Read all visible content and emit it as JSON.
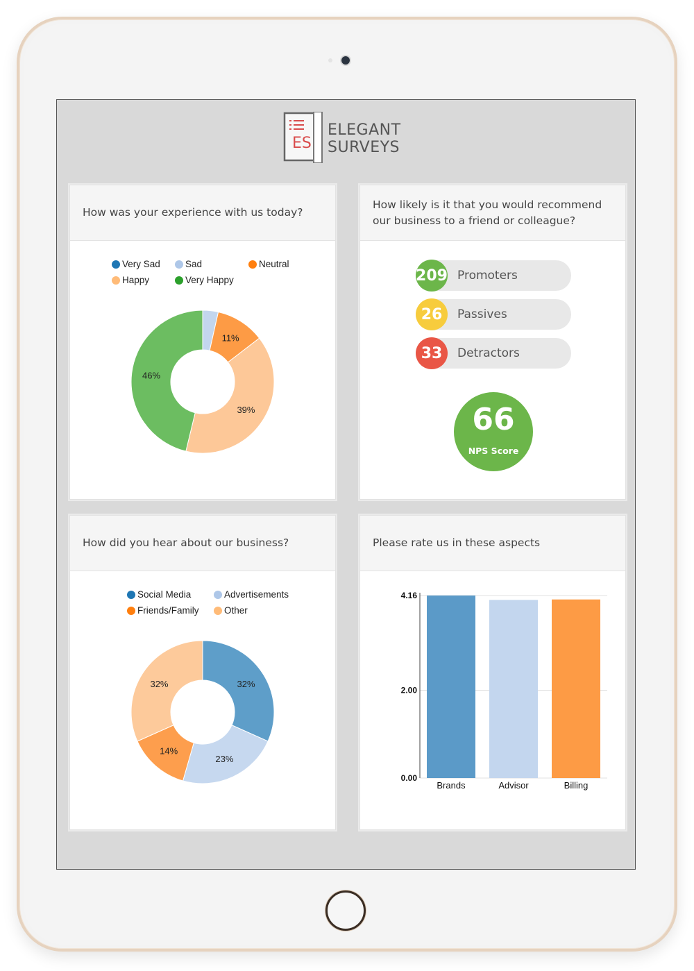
{
  "brand": {
    "logo_letters": "ES",
    "name_line1": "ELEGANT",
    "name_line2": "SURVEYS"
  },
  "colors": {
    "blue": "#4a90c4",
    "light_blue": "#c3d6ee",
    "orange": "#fd9b45",
    "peach": "#fdc898",
    "green": "#6cbd61",
    "yellow": "#f7cc3d",
    "red": "#e95646",
    "nps_green": "#6cb64a"
  },
  "cards": {
    "experience": {
      "question": "How was your experience with us today?"
    },
    "recommend": {
      "question": "How likely is it that you would recommend our business to a friend or colleague?"
    },
    "hear": {
      "question": "How did you hear about our business?"
    },
    "rate": {
      "question": "Please rate us in these aspects"
    }
  },
  "nps": {
    "groups": [
      {
        "count": "209",
        "label": "Promoters",
        "color": "#6cb64a"
      },
      {
        "count": "26",
        "label": "Passives",
        "color": "#f7cc3d"
      },
      {
        "count": "33",
        "label": "Detractors",
        "color": "#e95646"
      }
    ],
    "score": "66",
    "score_label": "NPS Score"
  },
  "chart_data": [
    {
      "type": "pie",
      "donut": true,
      "legend": [
        "Very Sad",
        "Sad",
        "Neutral",
        "Happy",
        "Very Happy"
      ],
      "legend_colors": [
        "#1f77b4",
        "#aec7e8",
        "#ff7f0e",
        "#ffbb78",
        "#2ca02c"
      ],
      "slices": [
        {
          "label": "Very Sad",
          "value": 0,
          "color": "#4a90c4"
        },
        {
          "label": "Sad",
          "value": 3.5,
          "color": "#c3d6ee"
        },
        {
          "label": "Neutral",
          "value": 11,
          "color": "#fd9b45",
          "display": "11%"
        },
        {
          "label": "Happy",
          "value": 39,
          "color": "#fdc898",
          "display": "39%"
        },
        {
          "label": "Very Happy",
          "value": 46,
          "color": "#6cbd61",
          "display": "46%"
        }
      ]
    },
    {
      "type": "pie",
      "donut": true,
      "legend": [
        "Social Media",
        "Advertisements",
        "Friends/Family",
        "Other"
      ],
      "legend_colors": [
        "#1f77b4",
        "#aec7e8",
        "#ff7f0e",
        "#ffbb78"
      ],
      "slices": [
        {
          "label": "Social Media",
          "value": 32,
          "color": "#5e9ec9",
          "display": "32%"
        },
        {
          "label": "Advertisements",
          "value": 23,
          "color": "#c6d8ef",
          "display": "23%"
        },
        {
          "label": "Friends/Family",
          "value": 14,
          "color": "#fd9e4d",
          "display": "14%"
        },
        {
          "label": "Other",
          "value": 32,
          "color": "#fdca9b",
          "display": "32%"
        }
      ]
    },
    {
      "type": "bar",
      "categories": [
        "Brands",
        "Advisor",
        "Billing"
      ],
      "values": [
        4.16,
        4.06,
        4.07
      ],
      "colors": [
        "#5b9ac8",
        "#c3d6ee",
        "#fd9b45"
      ],
      "yticks": [
        "4.16",
        "2.00",
        "0.00"
      ],
      "ylim": [
        0,
        4.16
      ],
      "grid": true
    }
  ]
}
